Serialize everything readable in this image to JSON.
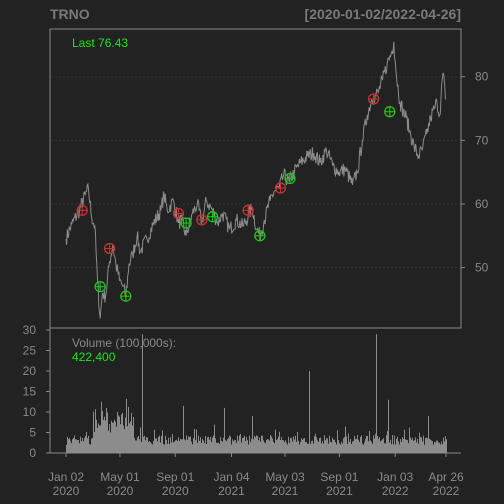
{
  "chart_data": {
    "type": "line",
    "symbol": "TRNO",
    "date_range_label": "[2020-01-02/2022-04-26]",
    "last_label": "Last 76.43",
    "volume_label": "Volume (100,000s):",
    "volume_value": "422,400",
    "colors": {
      "background": "#222222",
      "frame": "#888888",
      "price_line": "#8c8c8c",
      "volume_bar": "#8c8c8c",
      "label_green": "#19e619",
      "sell_marker": "#c83232",
      "buy_marker": "#19c819"
    },
    "price_axis": {
      "ticks": [
        "50",
        "60",
        "70",
        "80"
      ],
      "tick_values": [
        50,
        60,
        70,
        80
      ],
      "ylim": [
        40.5,
        87.5
      ]
    },
    "volume_axis": {
      "ticks": [
        "0",
        "5",
        "10",
        "15",
        "20",
        "25",
        "30"
      ],
      "tick_values": [
        0,
        5,
        10,
        15,
        20,
        25,
        30
      ],
      "ylim": [
        0,
        30
      ]
    },
    "x_axis": {
      "xlim": [
        "2020-01-02",
        "2022-04-26"
      ],
      "ticks": [
        {
          "date": "2020-01-02",
          "line1": "Jan 02",
          "line2": "2020"
        },
        {
          "date": "2020-05-01",
          "line1": "May 01",
          "line2": "2020"
        },
        {
          "date": "2020-09-01",
          "line1": "Sep 01",
          "line2": "2020"
        },
        {
          "date": "2021-01-04",
          "line1": "Jan 04",
          "line2": "2021"
        },
        {
          "date": "2021-05-03",
          "line1": "May 03",
          "line2": "2021"
        },
        {
          "date": "2021-09-01",
          "line1": "Sep 01",
          "line2": "2021"
        },
        {
          "date": "2022-01-03",
          "line1": "Jan 03",
          "line2": "2022"
        },
        {
          "date": "2022-04-26",
          "line1": "Apr 26",
          "line2": "2022"
        }
      ]
    },
    "price_series": [
      [
        "2020-01-02",
        54.5
      ],
      [
        "2020-01-15",
        56.8
      ],
      [
        "2020-02-01",
        59.0
      ],
      [
        "2020-02-14",
        61.5
      ],
      [
        "2020-02-21",
        62.3
      ],
      [
        "2020-02-28",
        58.0
      ],
      [
        "2020-03-06",
        56.5
      ],
      [
        "2020-03-12",
        48.0
      ],
      [
        "2020-03-18",
        42.0
      ],
      [
        "2020-03-23",
        46.0
      ],
      [
        "2020-03-30",
        45.5
      ],
      [
        "2020-04-08",
        51.0
      ],
      [
        "2020-04-15",
        53.5
      ],
      [
        "2020-04-22",
        50.5
      ],
      [
        "2020-04-30",
        48.0
      ],
      [
        "2020-05-08",
        47.0
      ],
      [
        "2020-05-14",
        45.5
      ],
      [
        "2020-05-21",
        50.5
      ],
      [
        "2020-05-29",
        52.0
      ],
      [
        "2020-06-08",
        55.0
      ],
      [
        "2020-06-15",
        52.5
      ],
      [
        "2020-06-30",
        54.5
      ],
      [
        "2020-07-15",
        57.0
      ],
      [
        "2020-07-31",
        59.0
      ],
      [
        "2020-08-07",
        61.5
      ],
      [
        "2020-08-14",
        59.0
      ],
      [
        "2020-08-28",
        60.5
      ],
      [
        "2020-09-08",
        57.0
      ],
      [
        "2020-09-15",
        57.5
      ],
      [
        "2020-09-25",
        55.0
      ],
      [
        "2020-10-09",
        58.5
      ],
      [
        "2020-10-20",
        60.0
      ],
      [
        "2020-10-30",
        57.0
      ],
      [
        "2020-11-09",
        60.5
      ],
      [
        "2020-11-23",
        59.0
      ],
      [
        "2020-12-04",
        57.0
      ],
      [
        "2020-12-15",
        58.5
      ],
      [
        "2020-12-31",
        56.0
      ],
      [
        "2021-01-15",
        57.5
      ],
      [
        "2021-01-29",
        56.5
      ],
      [
        "2021-02-10",
        58.0
      ],
      [
        "2021-02-19",
        59.5
      ],
      [
        "2021-03-01",
        56.0
      ],
      [
        "2021-03-08",
        55.0
      ],
      [
        "2021-03-18",
        57.5
      ],
      [
        "2021-03-31",
        60.5
      ],
      [
        "2021-04-09",
        62.0
      ],
      [
        "2021-04-20",
        62.5
      ],
      [
        "2021-04-30",
        64.5
      ],
      [
        "2021-05-12",
        63.5
      ],
      [
        "2021-05-24",
        65.0
      ],
      [
        "2021-06-07",
        66.5
      ],
      [
        "2021-06-22",
        67.5
      ],
      [
        "2021-07-06",
        68.0
      ],
      [
        "2021-07-20",
        66.5
      ],
      [
        "2021-08-03",
        68.5
      ],
      [
        "2021-08-17",
        66.0
      ],
      [
        "2021-08-31",
        65.0
      ],
      [
        "2021-09-14",
        65.5
      ],
      [
        "2021-09-30",
        63.0
      ],
      [
        "2021-10-11",
        65.0
      ],
      [
        "2021-10-22",
        70.0
      ],
      [
        "2021-11-02",
        74.0
      ],
      [
        "2021-11-12",
        76.5
      ],
      [
        "2021-11-26",
        77.5
      ],
      [
        "2021-12-06",
        79.5
      ],
      [
        "2021-12-16",
        82.0
      ],
      [
        "2021-12-27",
        84.0
      ],
      [
        "2021-12-31",
        85.5
      ],
      [
        "2022-01-06",
        80.0
      ],
      [
        "2022-01-14",
        76.0
      ],
      [
        "2022-01-21",
        74.5
      ],
      [
        "2022-01-28",
        73.5
      ],
      [
        "2022-02-04",
        71.5
      ],
      [
        "2022-02-14",
        69.0
      ],
      [
        "2022-02-24",
        67.5
      ],
      [
        "2022-03-04",
        68.5
      ],
      [
        "2022-03-14",
        71.0
      ],
      [
        "2022-03-23",
        73.5
      ],
      [
        "2022-03-31",
        75.0
      ],
      [
        "2022-04-06",
        76.0
      ],
      [
        "2022-04-12",
        74.0
      ],
      [
        "2022-04-19",
        80.5
      ],
      [
        "2022-04-26",
        76.43
      ]
    ],
    "sell_markers": [
      [
        "2020-02-07",
        59.0
      ],
      [
        "2020-04-08",
        53.0
      ],
      [
        "2020-09-08",
        58.5
      ],
      [
        "2020-10-30",
        57.5
      ],
      [
        "2021-02-10",
        59.0
      ],
      [
        "2021-04-23",
        62.5
      ],
      [
        "2021-11-16",
        76.5
      ]
    ],
    "buy_markers": [
      [
        "2020-03-18",
        47.0
      ],
      [
        "2020-05-14",
        45.5
      ],
      [
        "2020-09-25",
        57.0
      ],
      [
        "2020-11-23",
        58.0
      ],
      [
        "2021-03-08",
        55.0
      ],
      [
        "2021-05-14",
        64.0
      ],
      [
        "2021-12-22",
        74.5
      ]
    ],
    "volume_spikes": [
      [
        "2020-06-19",
        29.0
      ],
      [
        "2020-09-18",
        11.5
      ],
      [
        "2020-12-18",
        11.0
      ],
      [
        "2021-02-19",
        9.0
      ],
      [
        "2021-06-25",
        20.0
      ],
      [
        "2021-11-22",
        29.0
      ],
      [
        "2021-12-17",
        13.0
      ],
      [
        "2020-04-01",
        11.0
      ],
      [
        "2020-03-20",
        12.5
      ],
      [
        "2022-03-18",
        9.0
      ]
    ]
  }
}
